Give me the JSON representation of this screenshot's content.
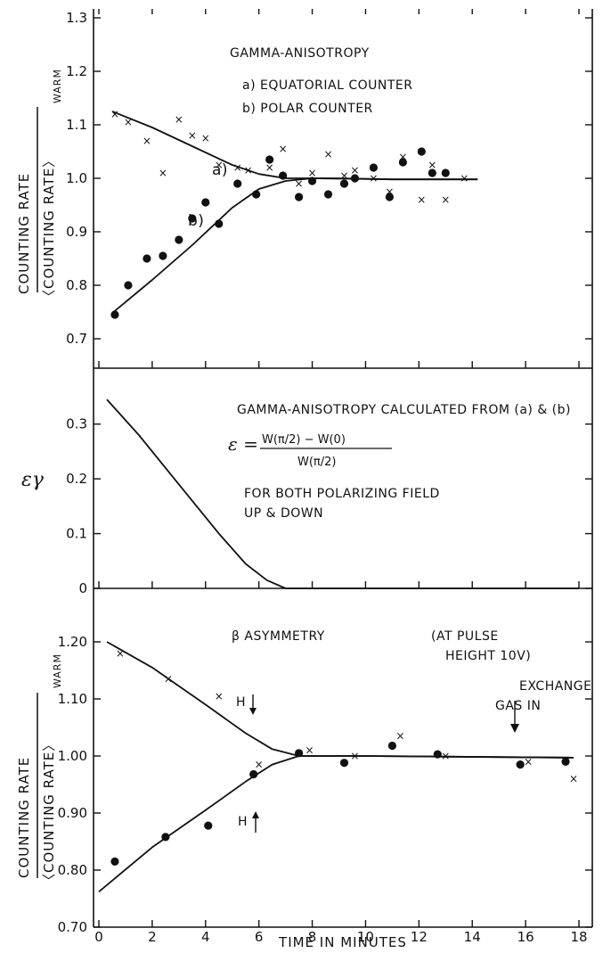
{
  "chart_data": [
    {
      "type": "scatter",
      "panel": "top",
      "ylim": [
        0.65,
        1.3
      ],
      "xlim": [
        0,
        18
      ],
      "yticks": [
        "0.7",
        "0.8",
        "0.9",
        "1.0",
        "1.1",
        "1.2",
        "1.3"
      ],
      "ytick_values": [
        0.7,
        0.8,
        0.9,
        1.0,
        1.1,
        1.2,
        1.3
      ],
      "ylabel_top": "COUNTING RATE",
      "ylabel_bottom": "〈COUNTING RATE〉",
      "ylabel_sub": "WARM",
      "title": "GAMMA-ANISOTROPY",
      "legend": [
        "a) EQUATORIAL COUNTER",
        "b) POLAR COUNTER"
      ],
      "curve_labels": [
        "a)",
        "b)"
      ],
      "series": [
        {
          "name": "a) EQUATORIAL COUNTER",
          "marker": "x",
          "points": [
            [
              0.6,
              1.12
            ],
            [
              1.1,
              1.105
            ],
            [
              1.8,
              1.07
            ],
            [
              2.4,
              1.01
            ],
            [
              3.0,
              1.11
            ],
            [
              3.5,
              1.08
            ],
            [
              4.0,
              1.075
            ],
            [
              4.5,
              1.025
            ],
            [
              5.2,
              1.02
            ],
            [
              5.6,
              1.015
            ],
            [
              6.4,
              1.02
            ],
            [
              6.9,
              1.055
            ],
            [
              7.5,
              0.99
            ],
            [
              8.0,
              1.01
            ],
            [
              8.6,
              1.045
            ],
            [
              9.2,
              1.005
            ],
            [
              9.6,
              1.015
            ],
            [
              10.3,
              1.0
            ],
            [
              10.9,
              0.975
            ],
            [
              11.4,
              1.04
            ],
            [
              12.1,
              0.96
            ],
            [
              12.5,
              1.025
            ],
            [
              13.0,
              0.96
            ],
            [
              13.7,
              1.0
            ]
          ]
        },
        {
          "name": "b) POLAR COUNTER",
          "marker": "dot",
          "points": [
            [
              0.6,
              0.745
            ],
            [
              1.1,
              0.8
            ],
            [
              1.8,
              0.85
            ],
            [
              2.4,
              0.855
            ],
            [
              3.0,
              0.885
            ],
            [
              3.5,
              0.925
            ],
            [
              4.0,
              0.955
            ],
            [
              4.5,
              0.915
            ],
            [
              5.2,
              0.99
            ],
            [
              5.9,
              0.97
            ],
            [
              6.4,
              1.035
            ],
            [
              6.9,
              1.005
            ],
            [
              7.5,
              0.965
            ],
            [
              8.0,
              0.995
            ],
            [
              8.6,
              0.97
            ],
            [
              9.2,
              0.99
            ],
            [
              9.6,
              1.0
            ],
            [
              10.3,
              1.02
            ],
            [
              10.9,
              0.965
            ],
            [
              11.4,
              1.03
            ],
            [
              12.1,
              1.05
            ],
            [
              12.5,
              1.01
            ],
            [
              13.0,
              1.01
            ]
          ]
        }
      ],
      "curves": [
        {
          "label": "a)",
          "points": [
            [
              0.5,
              1.125
            ],
            [
              2,
              1.095
            ],
            [
              3.5,
              1.06
            ],
            [
              5,
              1.025
            ],
            [
              6,
              1.008
            ],
            [
              7,
              1.0
            ],
            [
              9,
              1.0
            ],
            [
              11,
              0.998
            ],
            [
              14.2,
              0.998
            ]
          ]
        },
        {
          "label": "b)",
          "points": [
            [
              0.5,
              0.748
            ],
            [
              2,
              0.81
            ],
            [
              3.5,
              0.875
            ],
            [
              5,
              0.945
            ],
            [
              6,
              0.98
            ],
            [
              7,
              0.995
            ],
            [
              8,
              1.0
            ],
            [
              11,
              0.998
            ],
            [
              14.2,
              0.998
            ]
          ]
        }
      ]
    },
    {
      "type": "line",
      "panel": "middle",
      "ylim": [
        0,
        0.35
      ],
      "xlim": [
        0,
        18
      ],
      "yticks": [
        "0",
        "0.1",
        "0.2",
        "0.3"
      ],
      "ytick_values": [
        0,
        0.1,
        0.2,
        0.3
      ],
      "ylabel": "εγ",
      "title": "GAMMA-ANISOTROPY CALCULATED FROM (a) & (b)",
      "formula_lhs": "ε =",
      "formula_num": "W(π/2) − W(0)",
      "formula_den": "W(π/2)",
      "note_1": "FOR BOTH POLARIZING FIELD",
      "note_2": "UP & DOWN",
      "curves": [
        {
          "points": [
            [
              0.3,
              0.345
            ],
            [
              1.5,
              0.28
            ],
            [
              3,
              0.19
            ],
            [
              4.5,
              0.1
            ],
            [
              5.5,
              0.045
            ],
            [
              6.3,
              0.015
            ],
            [
              7,
              0.0
            ],
            [
              8,
              0.0
            ],
            [
              18,
              0.0
            ]
          ]
        }
      ]
    },
    {
      "type": "scatter",
      "panel": "bottom",
      "ylim": [
        0.7,
        1.25
      ],
      "xlim": [
        0,
        18
      ],
      "yticks": [
        "0.70",
        "0.80",
        "0.90",
        "1.00",
        "1.10",
        "1.20"
      ],
      "ytick_values": [
        0.7,
        0.8,
        0.9,
        1.0,
        1.1,
        1.2
      ],
      "xticks": [
        "0",
        "2",
        "4",
        "6",
        "8",
        "10",
        "12",
        "14",
        "16",
        "18"
      ],
      "xtick_values": [
        0,
        2,
        4,
        6,
        8,
        10,
        12,
        14,
        16,
        18
      ],
      "xlabel": "TIME IN MINUTES",
      "ylabel_top": "COUNTING RATE",
      "ylabel_bottom": "〈COUNTING RATE〉",
      "ylabel_sub": "WARM",
      "title": "β ASYMMETRY",
      "note_1": "(AT PULSE",
      "note_2": "HEIGHT 10V)",
      "h_down_label": "H",
      "h_up_label": "H",
      "exchange_label_1": "EXCHANGE",
      "exchange_label_2": "GAS IN",
      "series": [
        {
          "name": "H down",
          "marker": "x",
          "points": [
            [
              0.8,
              1.18
            ],
            [
              2.6,
              1.135
            ],
            [
              4.5,
              1.105
            ],
            [
              6.0,
              0.985
            ],
            [
              7.9,
              1.01
            ],
            [
              9.6,
              1.0
            ],
            [
              11.3,
              1.035
            ],
            [
              13.0,
              1.0
            ],
            [
              16.1,
              0.99
            ],
            [
              17.8,
              0.96
            ]
          ]
        },
        {
          "name": "H up",
          "marker": "dot",
          "points": [
            [
              0.6,
              0.815
            ],
            [
              2.5,
              0.858
            ],
            [
              4.1,
              0.878
            ],
            [
              5.8,
              0.968
            ],
            [
              7.5,
              1.005
            ],
            [
              9.2,
              0.988
            ],
            [
              11.0,
              1.018
            ],
            [
              12.7,
              1.003
            ],
            [
              15.8,
              0.985
            ],
            [
              17.5,
              0.99
            ]
          ]
        }
      ],
      "curves": [
        {
          "points": [
            [
              0.3,
              1.2
            ],
            [
              2,
              1.155
            ],
            [
              4,
              1.09
            ],
            [
              5.5,
              1.04
            ],
            [
              6.5,
              1.012
            ],
            [
              7.5,
              1.0
            ],
            [
              10,
              1.0
            ],
            [
              17.8,
              0.997
            ]
          ]
        },
        {
          "points": [
            [
              0.0,
              0.762
            ],
            [
              2,
              0.84
            ],
            [
              4,
              0.905
            ],
            [
              5.5,
              0.955
            ],
            [
              6.5,
              0.985
            ],
            [
              7.5,
              1.0
            ],
            [
              10,
              1.0
            ],
            [
              17.8,
              0.997
            ]
          ]
        }
      ]
    }
  ]
}
